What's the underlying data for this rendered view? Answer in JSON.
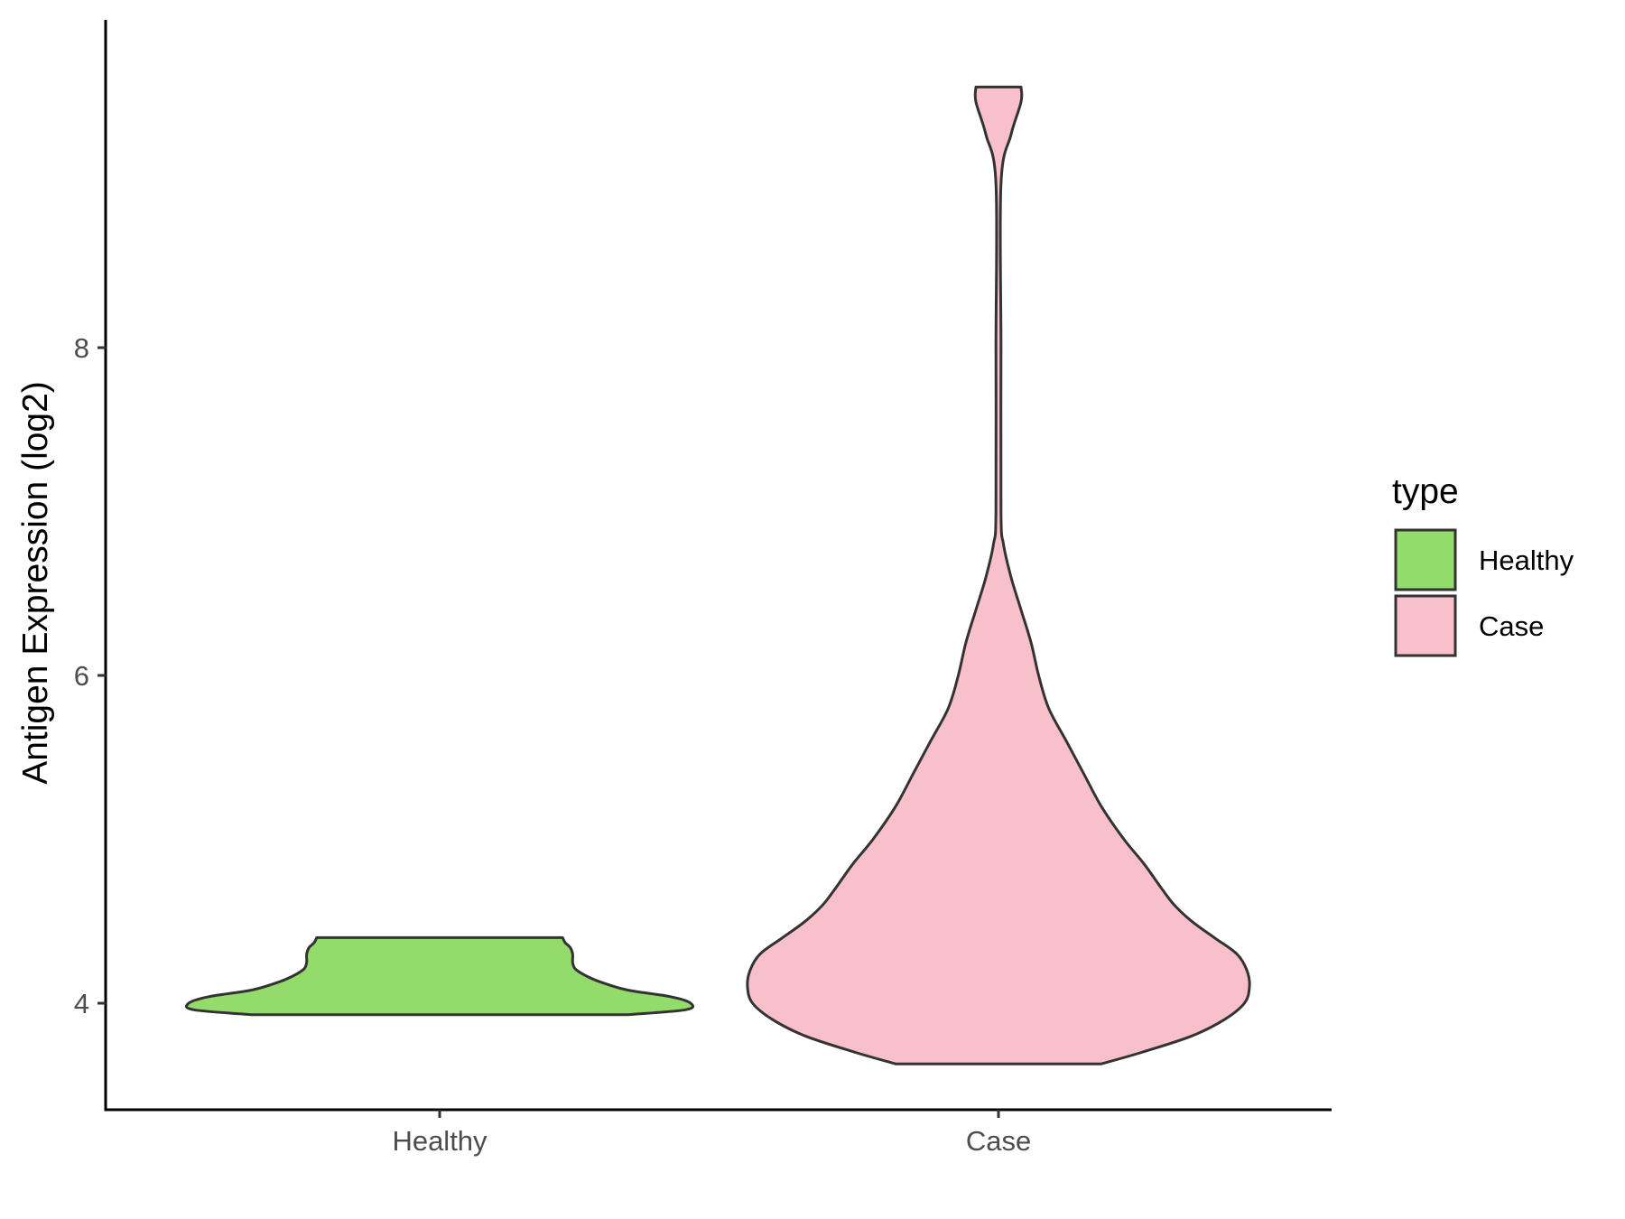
{
  "chart_data": {
    "type": "violin",
    "title": "",
    "xlabel": "",
    "ylabel": "Antigen Expression (log2)",
    "categories": [
      "Healthy",
      "Case"
    ],
    "ylim": [
      3.35,
      10.0
    ],
    "yticks": [
      4,
      6,
      8
    ],
    "grid": false,
    "legend": {
      "title": "type",
      "position": "right",
      "entries": [
        {
          "label": "Healthy",
          "color": "#93DB6A"
        },
        {
          "label": "Case",
          "color": "#F8C0CB"
        }
      ]
    },
    "series": [
      {
        "category": "Healthy",
        "color": "#93DB6A",
        "ymin": 3.93,
        "ymax": 4.4,
        "density": [
          [
            3.93,
            0.75
          ],
          [
            3.96,
            0.98
          ],
          [
            4.0,
            1.0
          ],
          [
            4.04,
            0.92
          ],
          [
            4.08,
            0.75
          ],
          [
            4.13,
            0.64
          ],
          [
            4.17,
            0.58
          ],
          [
            4.21,
            0.54
          ],
          [
            4.25,
            0.53
          ],
          [
            4.3,
            0.53
          ],
          [
            4.34,
            0.52
          ],
          [
            4.37,
            0.5
          ],
          [
            4.4,
            0.49
          ]
        ]
      },
      {
        "category": "Case",
        "color": "#F8C0CB",
        "ymin": 3.63,
        "ymax": 9.59,
        "density": [
          [
            3.63,
            0.41
          ],
          [
            3.7,
            0.57
          ],
          [
            3.8,
            0.77
          ],
          [
            3.9,
            0.9
          ],
          [
            4.0,
            0.98
          ],
          [
            4.1,
            1.0
          ],
          [
            4.2,
            0.99
          ],
          [
            4.3,
            0.95
          ],
          [
            4.4,
            0.86
          ],
          [
            4.5,
            0.77
          ],
          [
            4.6,
            0.7
          ],
          [
            4.7,
            0.65
          ],
          [
            4.85,
            0.58
          ],
          [
            5.0,
            0.5
          ],
          [
            5.2,
            0.41
          ],
          [
            5.4,
            0.34
          ],
          [
            5.6,
            0.27
          ],
          [
            5.8,
            0.2
          ],
          [
            6.0,
            0.16
          ],
          [
            6.2,
            0.13
          ],
          [
            6.4,
            0.09
          ],
          [
            6.6,
            0.05
          ],
          [
            6.8,
            0.02
          ],
          [
            7.0,
            0.01
          ],
          [
            8.0,
            0.01
          ],
          [
            9.0,
            0.01
          ],
          [
            9.3,
            0.05
          ],
          [
            9.5,
            0.09
          ],
          [
            9.59,
            0.09
          ]
        ]
      }
    ]
  }
}
